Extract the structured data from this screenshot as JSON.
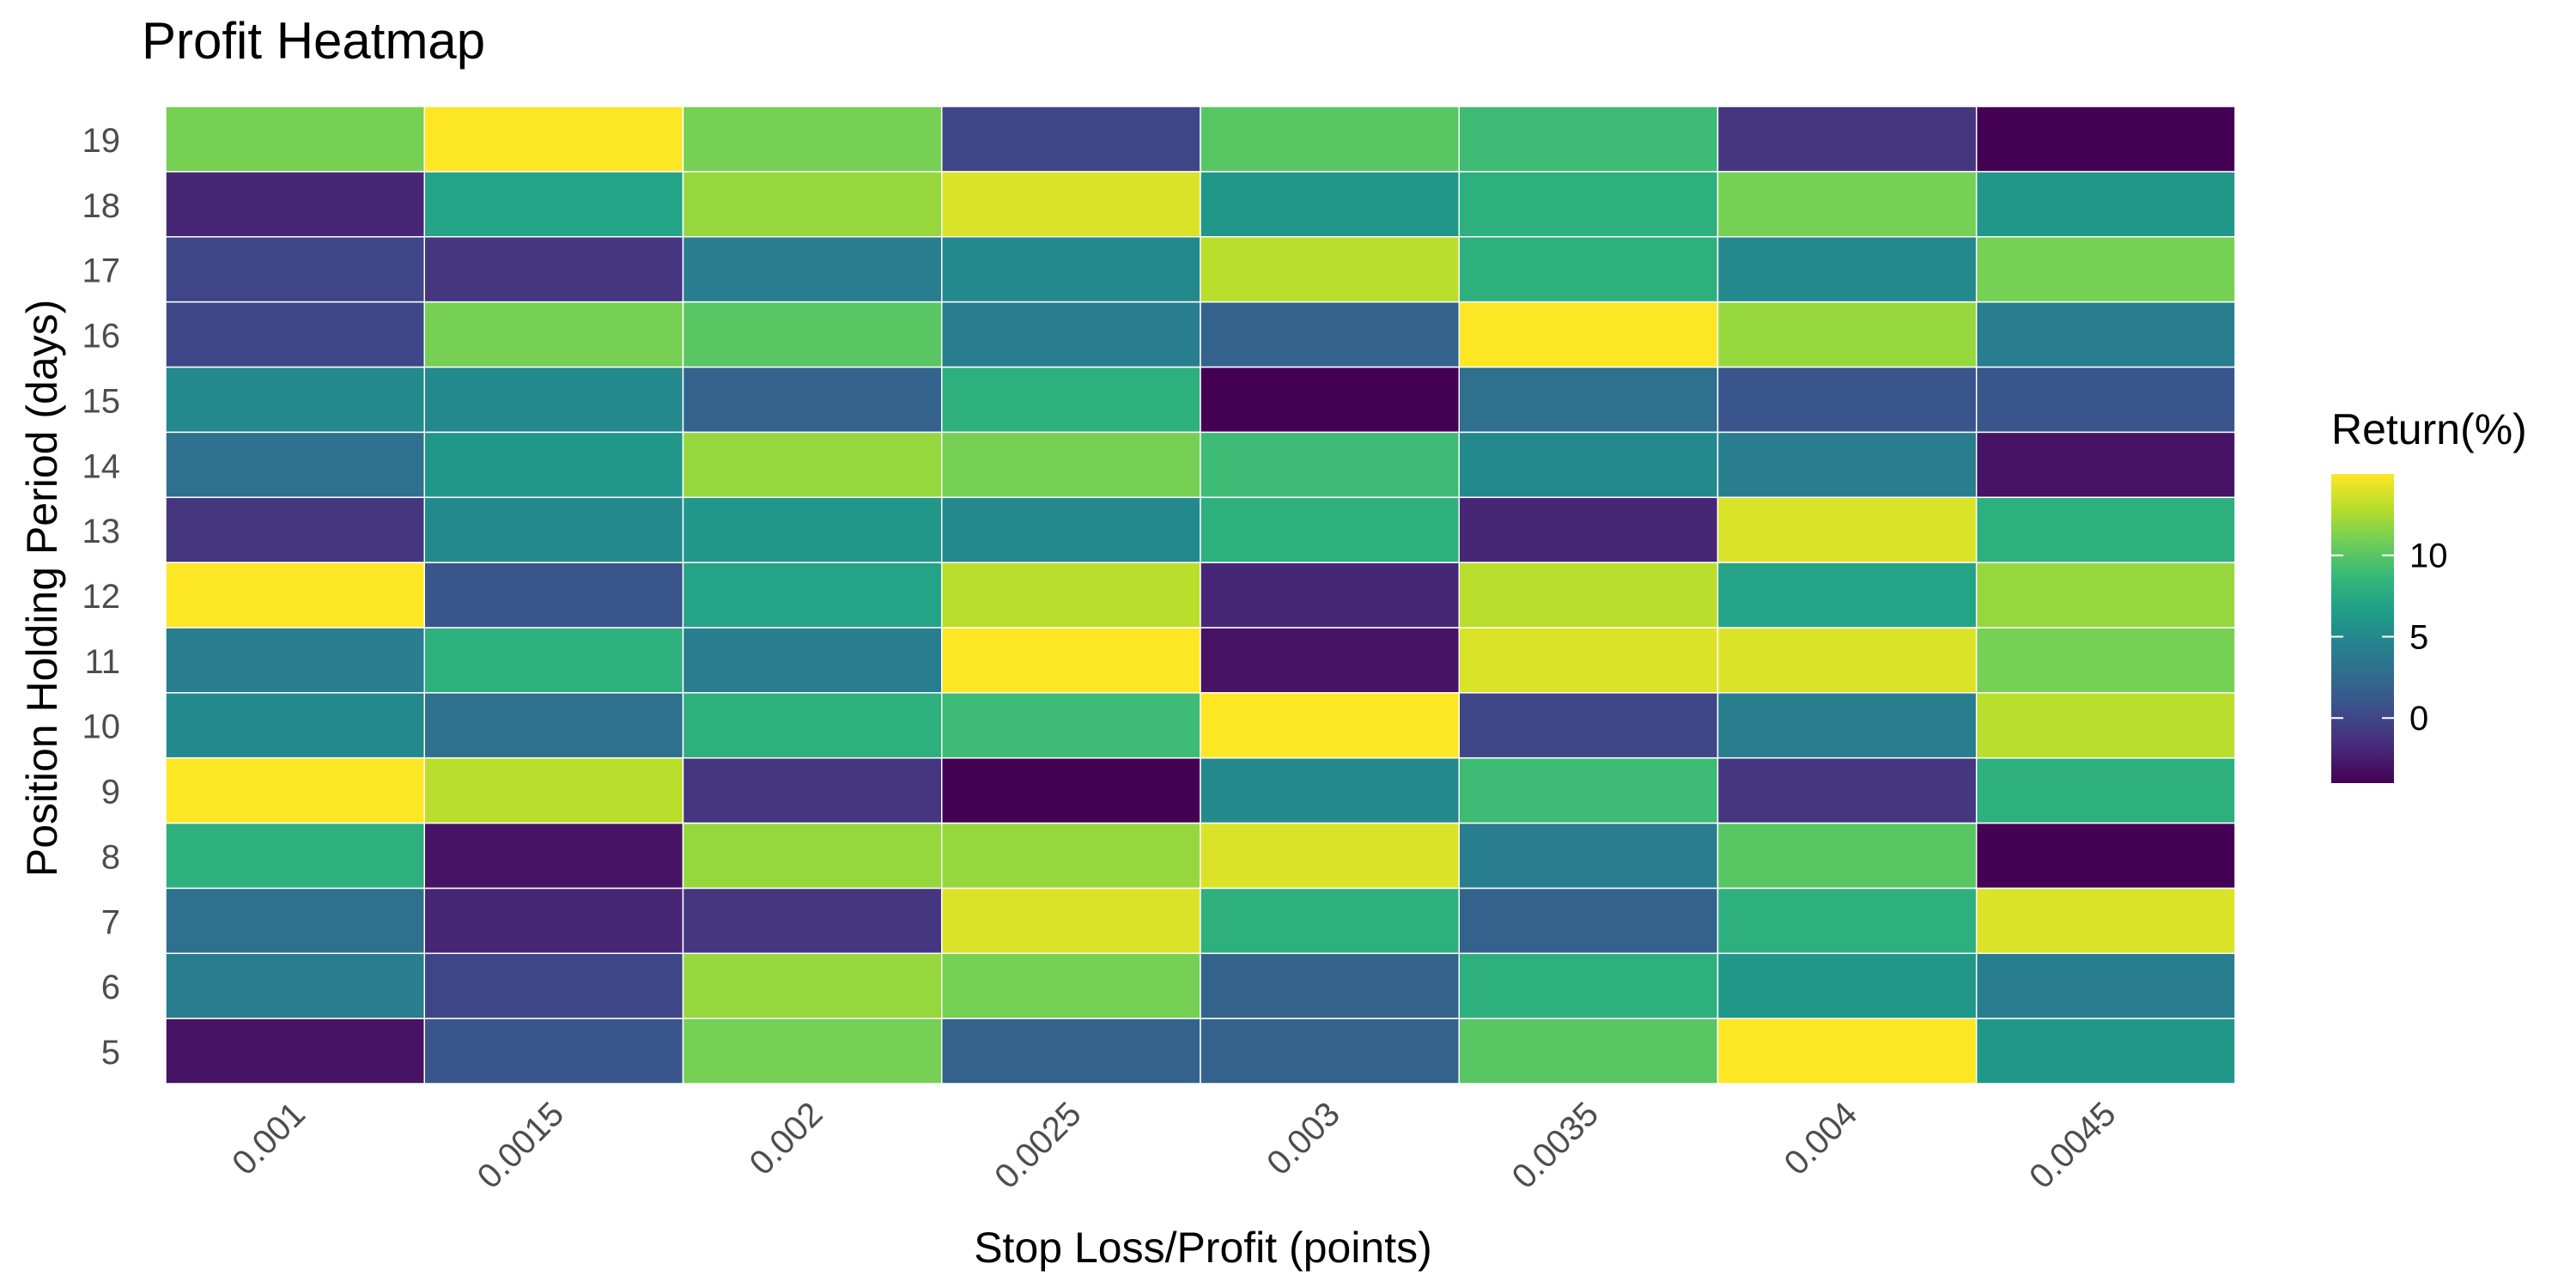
{
  "chart_data": {
    "type": "heatmap",
    "title": "Profit Heatmap",
    "xlabel": "Stop Loss/Profit (points)",
    "ylabel": "Position Holding Period (days)",
    "x_categories": [
      "0.001",
      "0.0015",
      "0.002",
      "0.0025",
      "0.003",
      "0.0035",
      "0.004",
      "0.0045"
    ],
    "y_categories": [
      "5",
      "6",
      "7",
      "8",
      "9",
      "10",
      "11",
      "12",
      "13",
      "14",
      "15",
      "16",
      "17",
      "18",
      "19"
    ],
    "values": [
      [
        -3,
        1,
        11,
        2,
        2,
        10,
        15,
        6
      ],
      [
        4,
        0,
        12,
        11,
        2,
        8,
        6,
        4
      ],
      [
        3,
        -2,
        -1,
        14,
        8,
        2,
        8,
        14
      ],
      [
        8,
        -3,
        12,
        12,
        14,
        4,
        10,
        -4
      ],
      [
        15,
        13,
        -1,
        -4,
        5,
        9,
        -1,
        8
      ],
      [
        5,
        3,
        8,
        9,
        15,
        0,
        4,
        13
      ],
      [
        4,
        8,
        4,
        15,
        -3,
        14,
        14,
        11
      ],
      [
        15,
        1,
        7,
        13,
        -2,
        13,
        7,
        12
      ],
      [
        -1,
        5,
        6,
        5,
        8,
        -2,
        14,
        8
      ],
      [
        3,
        6,
        12,
        11,
        9,
        5,
        4,
        -3
      ],
      [
        5,
        5,
        2,
        8,
        -4,
        3,
        1,
        1
      ],
      [
        0,
        11,
        10,
        4,
        2,
        15,
        12,
        4
      ],
      [
        0,
        -1,
        4,
        5,
        13,
        8,
        5,
        11
      ],
      [
        -2,
        7,
        12,
        14,
        6,
        8,
        11,
        6
      ],
      [
        11,
        15,
        11,
        0,
        10,
        9,
        -1,
        -4
      ]
    ],
    "colorbar": {
      "title": "Return(%)",
      "ticks": [
        "0",
        "5",
        "10"
      ],
      "range": [
        -4,
        15
      ],
      "colormap": [
        "#440154",
        "#482878",
        "#3e4a89",
        "#31688e",
        "#26828e",
        "#1f9e89",
        "#35b779",
        "#6ece58",
        "#b5de2b",
        "#fde725"
      ]
    },
    "grid": false,
    "legend_position": "right"
  }
}
